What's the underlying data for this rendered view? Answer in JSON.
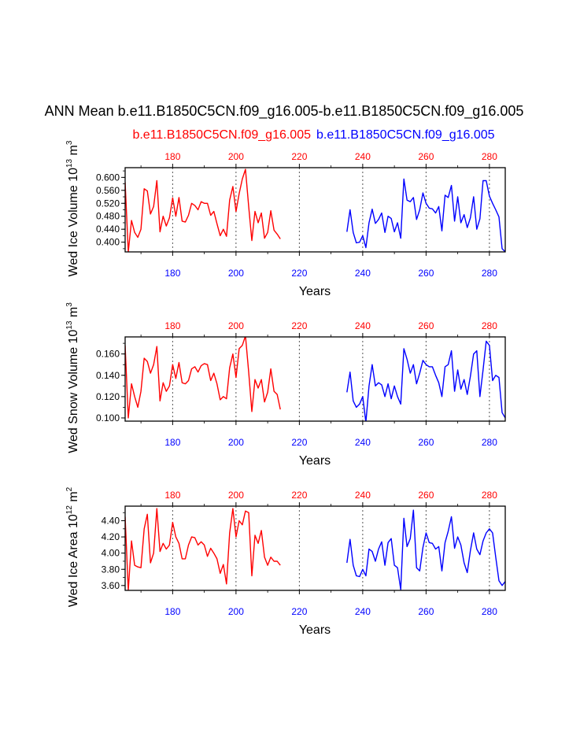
{
  "figure": {
    "title": "ANN Mean b.e11.B1850C5CN.f09_g16.005-b.e11.B1850C5CN.f09_g16.005",
    "case1_label": "b.e11.B1850C5CN.f09_g16.005",
    "case2_label": "b.e11.B1850C5CN.f09_g16.005"
  },
  "colors": {
    "case1": "#ff0000",
    "case2": "#0000ff",
    "axis": "#000000"
  },
  "chart_data": [
    {
      "type": "line",
      "id": "ice-volume",
      "ylabel_main": "Wed Ice Volume 10",
      "ylabel_exp": "13",
      "ylabel_unit": " m",
      "ylabel_unit_exp": "3",
      "xlabel": "Years",
      "xlim": [
        165,
        285
      ],
      "ylim": [
        0.37,
        0.63
      ],
      "yticks": [
        0.4,
        0.44,
        0.48,
        0.52,
        0.56,
        0.6
      ],
      "ytick_labels": [
        "0.400",
        "0.440",
        "0.480",
        "0.520",
        "0.560",
        "0.600"
      ],
      "series": [
        {
          "name": "b.e11.B1850C5CN.f09_g16.005",
          "color": "#ff0000",
          "x": [
            165,
            166,
            167,
            168,
            169,
            170,
            171,
            172,
            173,
            174,
            175,
            176,
            177,
            178,
            179,
            180,
            181,
            182,
            183,
            184,
            185,
            186,
            187,
            188,
            189,
            190,
            191,
            192,
            193,
            194,
            195,
            196,
            197,
            198,
            199,
            200,
            201,
            202,
            203,
            204,
            205,
            206,
            207,
            208,
            209,
            210,
            211,
            212,
            213,
            214
          ],
          "values": [
            0.585,
            0.37,
            0.467,
            0.43,
            0.415,
            0.44,
            0.565,
            0.558,
            0.487,
            0.51,
            0.59,
            0.432,
            0.48,
            0.45,
            0.475,
            0.537,
            0.48,
            0.538,
            0.465,
            0.462,
            0.483,
            0.52,
            0.513,
            0.5,
            0.525,
            0.52,
            0.52,
            0.483,
            0.495,
            0.457,
            0.42,
            0.44,
            0.418,
            0.53,
            0.572,
            0.495,
            0.55,
            0.595,
            0.625,
            0.51,
            0.405,
            0.495,
            0.46,
            0.49,
            0.412,
            0.43,
            0.497,
            0.437,
            0.425,
            0.41
          ]
        },
        {
          "name": "b.e11.B1850C5CN.f09_g16.005",
          "color": "#0000ff",
          "x": [
            235,
            236,
            237,
            238,
            239,
            240,
            241,
            242,
            243,
            244,
            245,
            246,
            247,
            248,
            249,
            250,
            251,
            252,
            253,
            254,
            255,
            256,
            257,
            258,
            259,
            260,
            261,
            262,
            263,
            264,
            265,
            266,
            267,
            268,
            269,
            270,
            271,
            272,
            273,
            274,
            275,
            276,
            277,
            278,
            279,
            280,
            281,
            282,
            283,
            284,
            285
          ],
          "values": [
            0.432,
            0.5,
            0.43,
            0.398,
            0.4,
            0.42,
            0.383,
            0.46,
            0.502,
            0.458,
            0.47,
            0.49,
            0.43,
            0.48,
            0.473,
            0.432,
            0.46,
            0.412,
            0.595,
            0.53,
            0.525,
            0.538,
            0.47,
            0.5,
            0.552,
            0.52,
            0.505,
            0.503,
            0.49,
            0.51,
            0.435,
            0.545,
            0.538,
            0.575,
            0.465,
            0.54,
            0.46,
            0.485,
            0.445,
            0.475,
            0.54,
            0.44,
            0.472,
            0.59,
            0.59,
            0.542,
            0.52,
            0.5,
            0.478,
            0.38,
            0.37
          ]
        }
      ],
      "top_axis_ticks": [
        180,
        200,
        220,
        240,
        260,
        280
      ],
      "bottom_axis_ticks": [
        180,
        200,
        220,
        240,
        260,
        280
      ]
    },
    {
      "type": "line",
      "id": "snow-volume",
      "ylabel_main": "Wed Snow Volume 10",
      "ylabel_exp": "13",
      "ylabel_unit": " m",
      "ylabel_unit_exp": "3",
      "xlabel": "Years",
      "xlim": [
        165,
        285
      ],
      "ylim": [
        0.097,
        0.176
      ],
      "yticks": [
        0.1,
        0.12,
        0.14,
        0.16
      ],
      "ytick_labels": [
        "0.100",
        "0.120",
        "0.140",
        "0.160"
      ],
      "series": [
        {
          "name": "b.e11.B1850C5CN.f09_g16.005",
          "color": "#ff0000",
          "x": [
            165,
            166,
            167,
            168,
            169,
            170,
            171,
            172,
            173,
            174,
            175,
            176,
            177,
            178,
            179,
            180,
            181,
            182,
            183,
            184,
            185,
            186,
            187,
            188,
            189,
            190,
            191,
            192,
            193,
            194,
            195,
            196,
            197,
            198,
            199,
            200,
            201,
            202,
            203,
            204,
            205,
            206,
            207,
            208,
            209,
            210,
            211,
            212,
            213,
            214
          ],
          "values": [
            0.168,
            0.1,
            0.132,
            0.12,
            0.11,
            0.125,
            0.156,
            0.153,
            0.142,
            0.15,
            0.167,
            0.116,
            0.133,
            0.125,
            0.13,
            0.15,
            0.137,
            0.152,
            0.133,
            0.132,
            0.135,
            0.146,
            0.148,
            0.143,
            0.149,
            0.151,
            0.15,
            0.135,
            0.142,
            0.132,
            0.117,
            0.12,
            0.118,
            0.147,
            0.16,
            0.138,
            0.165,
            0.168,
            0.177,
            0.143,
            0.106,
            0.136,
            0.128,
            0.136,
            0.115,
            0.124,
            0.146,
            0.125,
            0.122,
            0.108
          ]
        },
        {
          "name": "b.e11.B1850C5CN.f09_g16.005",
          "color": "#0000ff",
          "x": [
            235,
            236,
            237,
            238,
            239,
            240,
            241,
            242,
            243,
            244,
            245,
            246,
            247,
            248,
            249,
            250,
            251,
            252,
            253,
            254,
            255,
            256,
            257,
            258,
            259,
            260,
            261,
            262,
            263,
            264,
            265,
            266,
            267,
            268,
            269,
            270,
            271,
            272,
            273,
            274,
            275,
            276,
            277,
            278,
            279,
            280,
            281,
            282,
            283,
            284,
            285
          ],
          "values": [
            0.124,
            0.143,
            0.116,
            0.11,
            0.113,
            0.12,
            0.096,
            0.13,
            0.15,
            0.13,
            0.133,
            0.131,
            0.12,
            0.132,
            0.118,
            0.13,
            0.12,
            0.113,
            0.165,
            0.155,
            0.142,
            0.15,
            0.132,
            0.142,
            0.154,
            0.15,
            0.148,
            0.148,
            0.14,
            0.133,
            0.12,
            0.148,
            0.15,
            0.163,
            0.125,
            0.145,
            0.127,
            0.136,
            0.122,
            0.139,
            0.16,
            0.163,
            0.12,
            0.145,
            0.172,
            0.168,
            0.135,
            0.14,
            0.138,
            0.105,
            0.1
          ]
        }
      ],
      "top_axis_ticks": [
        180,
        200,
        220,
        240,
        260,
        280
      ],
      "bottom_axis_ticks": [
        180,
        200,
        220,
        240,
        260,
        280
      ]
    },
    {
      "type": "line",
      "id": "ice-area",
      "ylabel_main": "Wed Ice Area 10",
      "ylabel_exp": "12",
      "ylabel_unit": " m",
      "ylabel_unit_exp": "2",
      "xlabel": "Years",
      "xlim": [
        165,
        285
      ],
      "ylim": [
        3.54,
        4.58
      ],
      "yticks": [
        3.6,
        3.8,
        4.0,
        4.2,
        4.4
      ],
      "ytick_labels": [
        "3.60",
        "3.80",
        "4.00",
        "4.20",
        "4.40"
      ],
      "series": [
        {
          "name": "b.e11.B1850C5CN.f09_g16.005",
          "color": "#ff0000",
          "x": [
            165,
            166,
            167,
            168,
            169,
            170,
            171,
            172,
            173,
            174,
            175,
            176,
            177,
            178,
            179,
            180,
            181,
            182,
            183,
            184,
            185,
            186,
            187,
            188,
            189,
            190,
            191,
            192,
            193,
            194,
            195,
            196,
            197,
            198,
            199,
            200,
            201,
            202,
            203,
            204,
            205,
            206,
            207,
            208,
            209,
            210,
            211,
            212,
            213,
            214
          ],
          "values": [
            4.45,
            3.54,
            4.15,
            3.85,
            3.83,
            3.82,
            4.3,
            4.48,
            3.88,
            4.0,
            4.55,
            4.02,
            4.12,
            4.05,
            4.1,
            4.38,
            4.2,
            4.12,
            3.93,
            3.93,
            4.1,
            4.2,
            4.19,
            4.1,
            4.14,
            4.1,
            3.96,
            4.06,
            4.0,
            3.93,
            3.75,
            3.86,
            3.62,
            4.25,
            4.55,
            4.2,
            4.4,
            4.35,
            4.52,
            4.5,
            3.72,
            4.22,
            4.12,
            4.28,
            3.95,
            3.85,
            3.95,
            3.9,
            3.9,
            3.85
          ]
        },
        {
          "name": "b.e11.B1850C5CN.f09_g16.005",
          "color": "#0000ff",
          "x": [
            235,
            236,
            237,
            238,
            239,
            240,
            241,
            242,
            243,
            244,
            245,
            246,
            247,
            248,
            249,
            250,
            251,
            252,
            253,
            254,
            255,
            256,
            257,
            258,
            259,
            260,
            261,
            262,
            263,
            264,
            265,
            266,
            267,
            268,
            269,
            270,
            271,
            272,
            273,
            274,
            275,
            276,
            277,
            278,
            279,
            280,
            281,
            282,
            283,
            284,
            285
          ],
          "values": [
            3.88,
            4.17,
            3.85,
            3.72,
            3.71,
            3.8,
            3.72,
            4.05,
            4.02,
            3.9,
            4.05,
            4.14,
            3.85,
            4.13,
            4.18,
            3.85,
            3.82,
            3.55,
            4.43,
            4.08,
            4.18,
            4.53,
            3.82,
            3.78,
            4.07,
            4.25,
            4.13,
            4.12,
            4.05,
            4.08,
            3.78,
            4.13,
            4.27,
            4.45,
            4.06,
            4.2,
            4.1,
            3.88,
            3.76,
            4.03,
            4.25,
            4.05,
            3.98,
            4.15,
            4.25,
            4.3,
            4.25,
            3.95,
            3.66,
            3.6,
            3.65
          ]
        }
      ],
      "top_axis_ticks": [
        180,
        200,
        220,
        240,
        260,
        280
      ],
      "bottom_axis_ticks": [
        180,
        200,
        220,
        240,
        260,
        280
      ]
    }
  ]
}
